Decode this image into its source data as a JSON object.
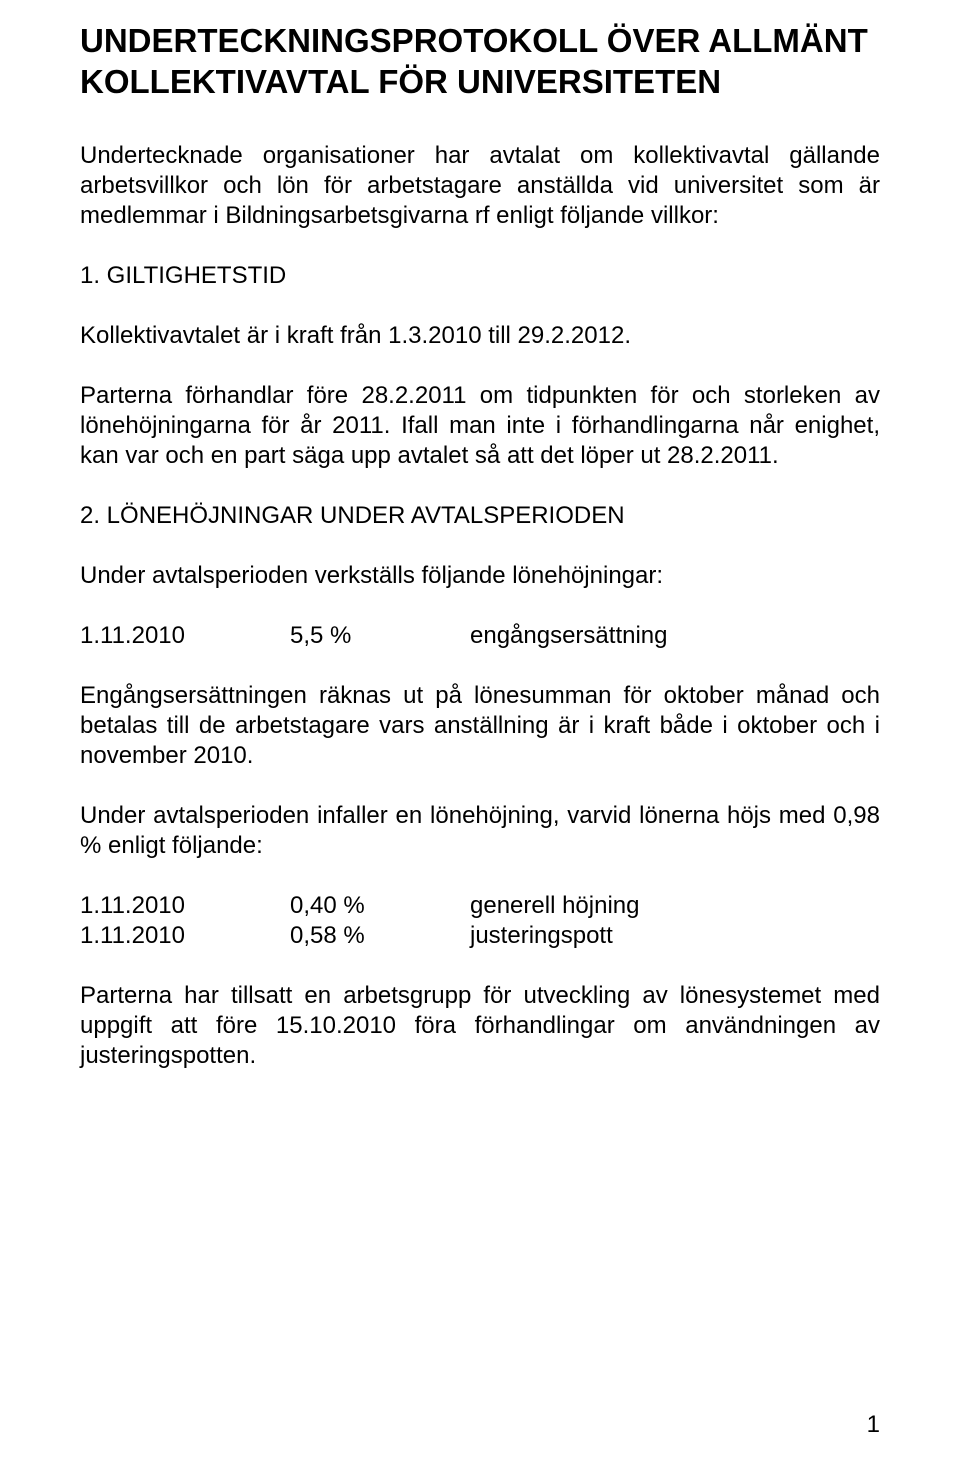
{
  "title": "UNDERTECKNINGSPROTOKOLL ÖVER ALLMÄNT KOLLEKTIVAVTAL FÖR UNIVERSITETEN",
  "intro": "Undertecknade organisationer har avtalat om kollektivavtal gällande arbetsvillkor och lön för arbetstagare anställda vid universitet som är medlemmar i Bildningsarbetsgivarna rf enligt följande villkor:",
  "section1": {
    "heading": "1. GILTIGHETSTID",
    "p1": "Kollektivavtalet är i kraft från 1.3.2010 till 29.2.2012.",
    "p2": "Parterna förhandlar före 28.2.2011 om tidpunkten för och storleken av lönehöjningarna för år 2011. Ifall man inte i förhandlingarna når enighet, kan var och en part säga upp avtalet så att det löper ut 28.2.2011."
  },
  "section2": {
    "heading": "2. LÖNEHÖJNINGAR UNDER AVTALSPERIODEN",
    "p1": "Under avtalsperioden verkställs följande lönehöjningar:",
    "row1": {
      "date": "1.11.2010",
      "pct": "5,5 %",
      "label": "engångsersättning"
    },
    "p2": "Engångsersättningen räknas ut på lönesumman för oktober månad och betalas till de arbetstagare vars anställning är i kraft både i oktober och i november 2010.",
    "p3": "Under avtalsperioden infaller en lönehöjning, varvid lönerna höjs med 0,98 % enligt följande:",
    "row2": {
      "date": "1.11.2010",
      "pct": "0,40 %",
      "label": "generell höjning"
    },
    "row3": {
      "date": "1.11.2010",
      "pct": "0,58 %",
      "label": "justeringspott"
    },
    "p4": "Parterna har tillsatt en arbetsgrupp för utveckling av lönesystemet med uppgift att före 15.10.2010 föra förhandlingar om användningen av justeringspotten."
  },
  "page_number": "1"
}
